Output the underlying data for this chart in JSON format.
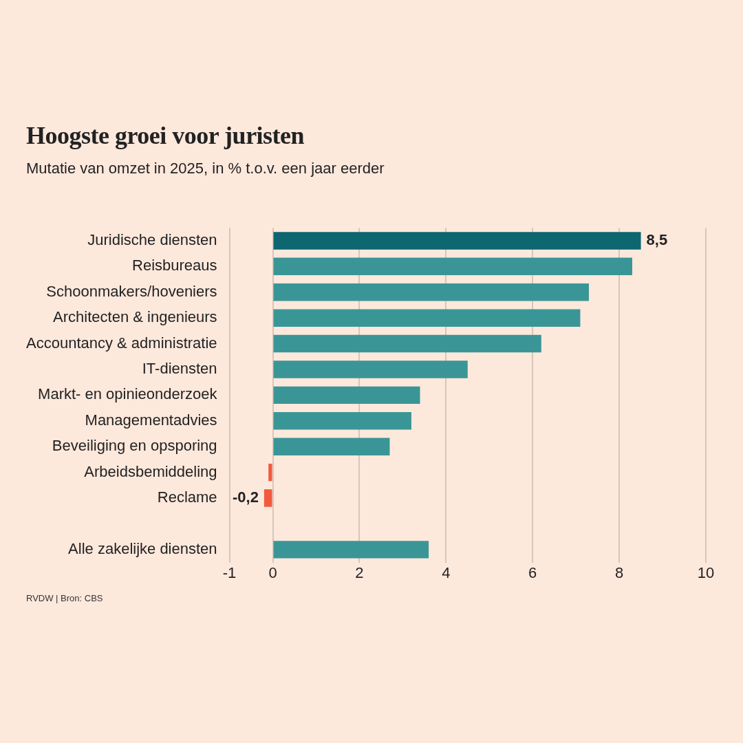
{
  "chart_data": {
    "type": "bar",
    "orientation": "horizontal",
    "title": "Hoogste groei voor juristen",
    "subtitle": "Mutatie van omzet in 2025, in % t.o.v. een jaar eerder",
    "categories": [
      "Juridische diensten",
      "Reisbureaus",
      "Schoonmakers/hoveniers",
      "Architecten & ingenieurs",
      "Accountancy & administratie",
      "IT-diensten",
      "Markt- en opinieonderzoek",
      "Managementadvies",
      "Beveiliging en opsporing",
      "Arbeidsbemiddeling",
      "Reclame",
      null,
      "Alle zakelijke diensten"
    ],
    "values": [
      8.5,
      8.3,
      7.3,
      7.1,
      6.2,
      4.5,
      3.4,
      3.2,
      2.7,
      -0.1,
      -0.2,
      null,
      3.6
    ],
    "colors": [
      "#0d6670",
      "#3a9696",
      "#3a9696",
      "#3a9696",
      "#3a9696",
      "#3a9696",
      "#3a9696",
      "#3a9696",
      "#3a9696",
      "#f15a3a",
      "#f15a3a",
      "#3a9696",
      "#3a9696"
    ],
    "value_labels": [
      "8,5",
      null,
      null,
      null,
      null,
      null,
      null,
      null,
      null,
      null,
      "-0,2",
      null,
      null
    ],
    "xlim": [
      -1,
      10
    ],
    "xticks": [
      -1,
      0,
      2,
      4,
      6,
      8,
      10
    ],
    "grid": "x",
    "annotations": [
      "RVDW | Bron: CBS"
    ]
  }
}
